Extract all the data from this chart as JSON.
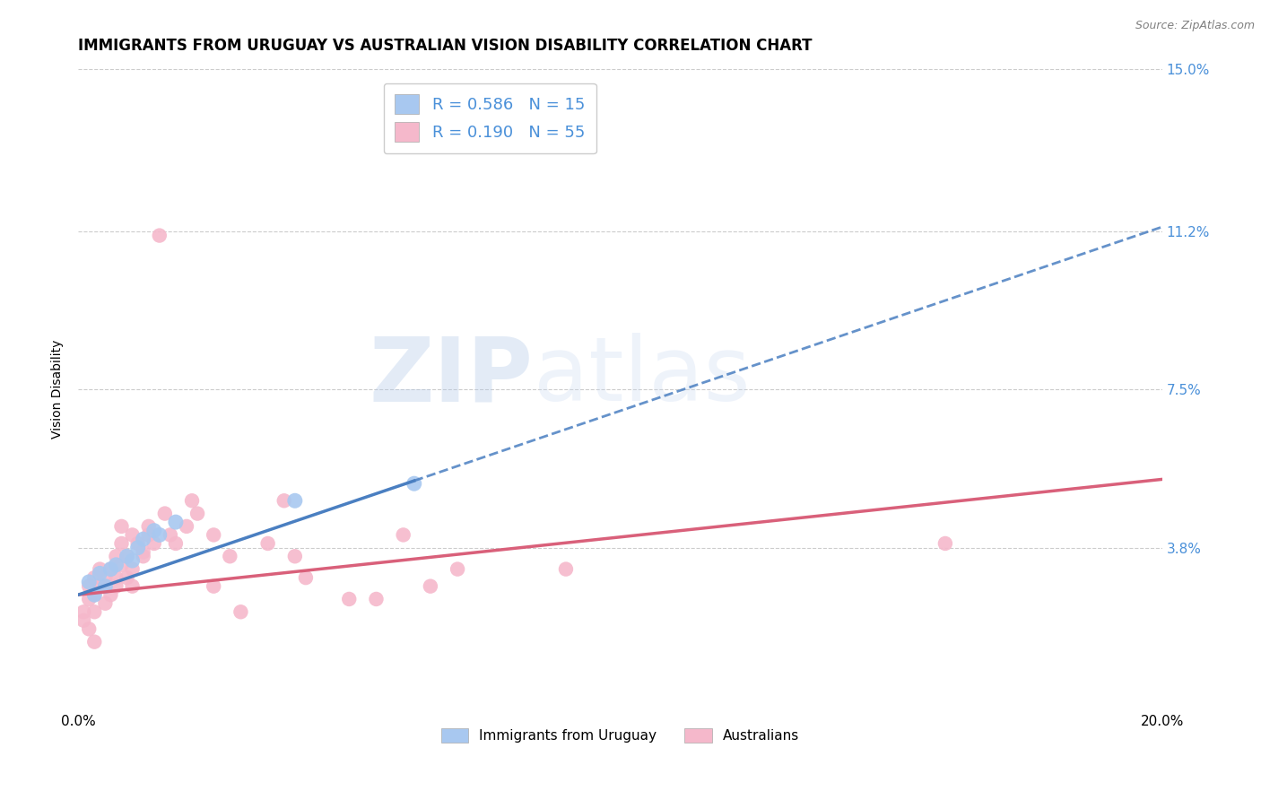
{
  "title": "IMMIGRANTS FROM URUGUAY VS AUSTRALIAN VISION DISABILITY CORRELATION CHART",
  "source": "Source: ZipAtlas.com",
  "ylabel": "Vision Disability",
  "xlim": [
    0.0,
    0.2
  ],
  "ylim": [
    0.0,
    0.15
  ],
  "x_ticks": [
    0.0,
    0.2
  ],
  "x_tick_labels": [
    "0.0%",
    "20.0%"
  ],
  "y_tick_vals": [
    0.038,
    0.075,
    0.112,
    0.15
  ],
  "y_tick_labels": [
    "3.8%",
    "7.5%",
    "11.2%",
    "15.0%"
  ],
  "blue_color": "#a8c8f0",
  "blue_line_color": "#4a7fc1",
  "pink_color": "#f5b8cb",
  "pink_line_color": "#d9607a",
  "text_blue_color": "#4a90d9",
  "legend_R_blue": "R = 0.586",
  "legend_N_blue": "N = 15",
  "legend_R_pink": "R = 0.190",
  "legend_N_pink": "N = 55",
  "watermark_zip": "ZIP",
  "watermark_atlas": "atlas",
  "blue_dots": [
    [
      0.002,
      0.03
    ],
    [
      0.003,
      0.027
    ],
    [
      0.004,
      0.032
    ],
    [
      0.005,
      0.029
    ],
    [
      0.006,
      0.033
    ],
    [
      0.007,
      0.034
    ],
    [
      0.009,
      0.036
    ],
    [
      0.01,
      0.035
    ],
    [
      0.011,
      0.038
    ],
    [
      0.012,
      0.04
    ],
    [
      0.014,
      0.042
    ],
    [
      0.015,
      0.041
    ],
    [
      0.018,
      0.044
    ],
    [
      0.04,
      0.049
    ],
    [
      0.062,
      0.053
    ]
  ],
  "pink_dots": [
    [
      0.001,
      0.021
    ],
    [
      0.001,
      0.023
    ],
    [
      0.002,
      0.019
    ],
    [
      0.002,
      0.026
    ],
    [
      0.002,
      0.029
    ],
    [
      0.003,
      0.023
    ],
    [
      0.003,
      0.031
    ],
    [
      0.003,
      0.027
    ],
    [
      0.004,
      0.029
    ],
    [
      0.004,
      0.033
    ],
    [
      0.005,
      0.031
    ],
    [
      0.005,
      0.029
    ],
    [
      0.005,
      0.025
    ],
    [
      0.006,
      0.027
    ],
    [
      0.006,
      0.033
    ],
    [
      0.007,
      0.031
    ],
    [
      0.007,
      0.029
    ],
    [
      0.007,
      0.036
    ],
    [
      0.008,
      0.034
    ],
    [
      0.008,
      0.039
    ],
    [
      0.008,
      0.043
    ],
    [
      0.009,
      0.031
    ],
    [
      0.009,
      0.036
    ],
    [
      0.01,
      0.029
    ],
    [
      0.01,
      0.033
    ],
    [
      0.01,
      0.041
    ],
    [
      0.011,
      0.039
    ],
    [
      0.012,
      0.037
    ],
    [
      0.012,
      0.036
    ],
    [
      0.013,
      0.041
    ],
    [
      0.013,
      0.043
    ],
    [
      0.014,
      0.039
    ],
    [
      0.015,
      0.111
    ],
    [
      0.016,
      0.046
    ],
    [
      0.017,
      0.041
    ],
    [
      0.018,
      0.039
    ],
    [
      0.02,
      0.043
    ],
    [
      0.021,
      0.049
    ],
    [
      0.022,
      0.046
    ],
    [
      0.025,
      0.029
    ],
    [
      0.025,
      0.041
    ],
    [
      0.028,
      0.036
    ],
    [
      0.03,
      0.023
    ],
    [
      0.035,
      0.039
    ],
    [
      0.038,
      0.049
    ],
    [
      0.04,
      0.036
    ],
    [
      0.042,
      0.031
    ],
    [
      0.05,
      0.026
    ],
    [
      0.055,
      0.026
    ],
    [
      0.06,
      0.041
    ],
    [
      0.065,
      0.029
    ],
    [
      0.07,
      0.033
    ],
    [
      0.09,
      0.033
    ],
    [
      0.16,
      0.039
    ],
    [
      0.003,
      0.016
    ]
  ],
  "title_fontsize": 12,
  "axis_label_fontsize": 10,
  "tick_fontsize": 11,
  "legend_fontsize": 13,
  "source_fontsize": 9
}
